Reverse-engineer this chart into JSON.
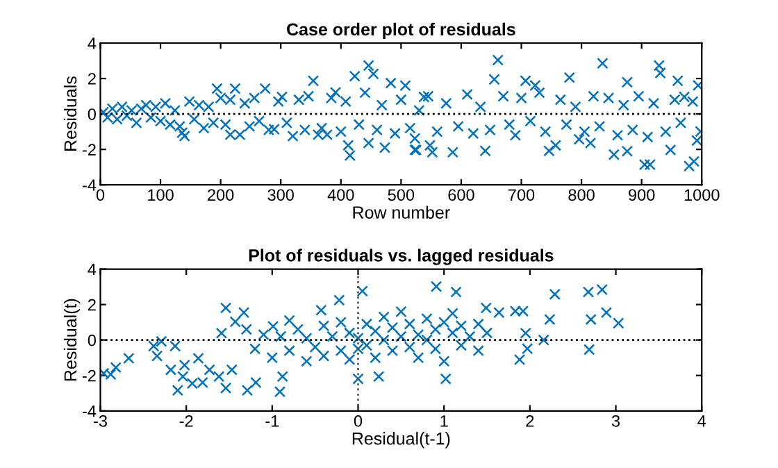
{
  "chart_data": [
    {
      "type": "scatter",
      "title": "Case order plot of residuals",
      "xlabel": "Row number",
      "ylabel": "Residuals",
      "color": "#0072bd",
      "marker": "cross",
      "grid": false,
      "xlim": [
        0,
        1000
      ],
      "ylim": [
        -4,
        4
      ],
      "xticks": [
        0,
        100,
        200,
        300,
        400,
        500,
        600,
        700,
        800,
        900,
        1000
      ],
      "yticks": [
        -4,
        -2,
        0,
        2,
        4
      ],
      "ref_lines": [
        {
          "axis": "y",
          "value": 0,
          "color": "#000000",
          "line_style": "dotted"
        }
      ],
      "x": [
        140,
        136,
        194,
        224,
        216,
        232,
        274,
        302,
        289,
        320,
        354,
        362,
        377,
        391,
        412,
        415,
        423,
        446,
        454,
        446,
        473,
        483,
        507,
        523,
        523,
        538,
        525,
        548,
        552,
        586,
        661,
        655,
        640,
        707,
        723,
        746,
        757,
        780,
        796,
        815,
        835,
        854,
        876,
        876,
        905,
        914,
        929,
        931,
        948,
        960,
        971,
        979,
        987,
        994,
        998,
        5,
        12,
        20,
        28,
        36,
        44,
        52,
        60,
        68,
        76,
        84,
        92,
        100,
        108,
        116,
        124,
        132,
        148,
        156,
        164,
        172,
        180,
        188,
        200,
        208,
        216,
        240,
        248,
        256,
        264,
        280,
        296,
        310,
        330,
        340,
        346,
        368,
        384,
        400,
        408,
        430,
        440,
        460,
        468,
        490,
        500,
        515,
        530,
        545,
        560,
        575,
        595,
        610,
        620,
        632,
        648,
        670,
        680,
        690,
        700,
        715,
        730,
        740,
        765,
        775,
        790,
        805,
        820,
        830,
        845,
        860,
        870,
        885,
        895,
        910,
        920,
        940,
        955,
        965,
        985,
        992
      ],
      "values": [
        -1.25,
        -1.06,
        1.43,
        1.43,
        -1.17,
        -1.17,
        1.43,
        0.96,
        -0.86,
        -1.25,
        1.87,
        -1.17,
        -1.17,
        1.22,
        -1.77,
        -2.34,
        2.13,
        2.73,
        2.26,
        -1.64,
        -1.9,
        1.74,
        1.6,
        -1.38,
        -2.03,
        0.96,
        -2.03,
        -1.77,
        -2.16,
        -2.16,
        3.04,
        1.95,
        -2.08,
        1.87,
        1.61,
        -2.08,
        -1.77,
        2.05,
        -1.43,
        -1.64,
        2.86,
        -2.29,
        -2.1,
        1.79,
        -2.86,
        -2.86,
        2.73,
        2.31,
        -2.03,
        1.87,
        0.96,
        -2.94,
        -2.68,
        1.61,
        -0.99,
        0.1,
        -0.2,
        0.3,
        -0.3,
        0.4,
        -0.1,
        0.2,
        -0.5,
        0.3,
        0.5,
        -0.2,
        0.4,
        -0.4,
        0.6,
        -0.6,
        0.2,
        -0.7,
        0.7,
        -0.3,
        0.5,
        -0.8,
        0.4,
        -0.5,
        0.9,
        -0.6,
        0.8,
        0.6,
        -0.7,
        0.9,
        -0.4,
        -0.9,
        0.7,
        -0.5,
        0.8,
        -0.9,
        1.0,
        -0.8,
        0.9,
        -1.0,
        0.7,
        -0.6,
        1.2,
        -0.9,
        0.5,
        -1.1,
        0.8,
        -0.8,
        0.2,
        1.0,
        -1.0,
        0.6,
        -0.7,
        1.1,
        -1.1,
        0.4,
        -0.9,
        1.0,
        -0.6,
        -1.2,
        0.9,
        -0.4,
        1.2,
        -1.0,
        0.8,
        -0.6,
        0.4,
        -1.0,
        1.0,
        -0.7,
        0.9,
        -1.2,
        0.5,
        -0.9,
        1.0,
        -1.3,
        0.6,
        -1.0,
        0.8,
        -0.5,
        0.7,
        -1.5
      ]
    },
    {
      "type": "scatter",
      "title": "Plot of residuals vs. lagged residuals",
      "xlabel": "Residual(t-1)",
      "ylabel": "Residual(t)",
      "color": "#0072bd",
      "marker": "cross",
      "grid": false,
      "xlim": [
        -3,
        4
      ],
      "ylim": [
        -4,
        4
      ],
      "xticks": [
        -3,
        -2,
        -1,
        0,
        1,
        2,
        3,
        4
      ],
      "yticks": [
        -4,
        -2,
        0,
        2,
        4
      ],
      "ref_lines": [
        {
          "axis": "y",
          "value": 0,
          "color": "#000000",
          "line_style": "dotted"
        },
        {
          "axis": "x",
          "value": 0,
          "color": "#555555",
          "line_style": "dotted"
        }
      ],
      "x": [
        -2.96,
        -2.88,
        -2.82,
        -2.67,
        -2.38,
        -2.34,
        -2.29,
        -2.18,
        -2.13,
        -2.1,
        -2.04,
        -2.02,
        -1.93,
        -1.81,
        -1.73,
        -1.86,
        -1.62,
        -1.59,
        -1.54,
        -1.54,
        -1.43,
        -1.47,
        -1.33,
        -1.29,
        -1.19,
        -0.91,
        -0.88,
        -0.99,
        -0.43,
        -0.22,
        0,
        0.05,
        0.24,
        0.91,
        1.14,
        1.02,
        1.49,
        1.64,
        1.83,
        1.92,
        1.95,
        1.88,
        1.97,
        2.16,
        2.23,
        2.29,
        2.68,
        2.71,
        2.69,
        2.84,
        2.89,
        3.03,
        -1.2,
        -1.1,
        -1.0,
        -0.9,
        -0.8,
        -0.7,
        -0.6,
        -0.6,
        -0.5,
        -0.4,
        -0.4,
        -0.3,
        -0.2,
        -0.2,
        -0.1,
        -0.1,
        0,
        0,
        0.1,
        0.1,
        0.2,
        0.2,
        0.3,
        0.3,
        0.4,
        0.4,
        0.5,
        0.5,
        0.6,
        0.6,
        0.7,
        0.7,
        0.8,
        0.8,
        0.9,
        0.9,
        1.0,
        1.0,
        1.1,
        1.2,
        1.2,
        1.3,
        1.4,
        1.4,
        1.5,
        -0.8,
        -1.3,
        1.1
      ],
      "values": [
        -1.88,
        -1.94,
        -1.55,
        -1.03,
        -0.34,
        -0.9,
        -0.08,
        -1.68,
        -0.34,
        -2.84,
        -2.06,
        -1.42,
        -2.45,
        -2.4,
        -1.68,
        -1.03,
        -2.06,
        0.39,
        1.81,
        -2.71,
        1.03,
        -1.68,
        1.55,
        -2.84,
        -2.4,
        -2.92,
        -2.06,
        0.77,
        1.68,
        2.25,
        -2.19,
        2.76,
        -2.06,
        3.02,
        2.71,
        -2.19,
        1.81,
        1.55,
        1.63,
        1.63,
        0.39,
        -1.11,
        -0.49,
        0,
        1.16,
        2.58,
        2.71,
        1.16,
        -0.54,
        2.84,
        1.55,
        0.95,
        -0.5,
        0.3,
        -1.0,
        0.2,
        -0.6,
        0.6,
        -1.2,
        0.1,
        -0.4,
        0.8,
        -0.9,
        0.2,
        -0.6,
        1.0,
        0.4,
        -1.1,
        0.1,
        -0.5,
        0.9,
        -0.3,
        0.5,
        -1.0,
        1.3,
        0.0,
        -0.6,
        0.7,
        0.2,
        1.6,
        -0.4,
        0.9,
        0.3,
        -1.0,
        1.2,
        0.0,
        0.6,
        -0.5,
        -1.2,
        1.0,
        0.4,
        -0.3,
        0.8,
        0.2,
        0.9,
        -0.6,
        0.4,
        1.1,
        0.6,
        1.5
      ]
    }
  ]
}
